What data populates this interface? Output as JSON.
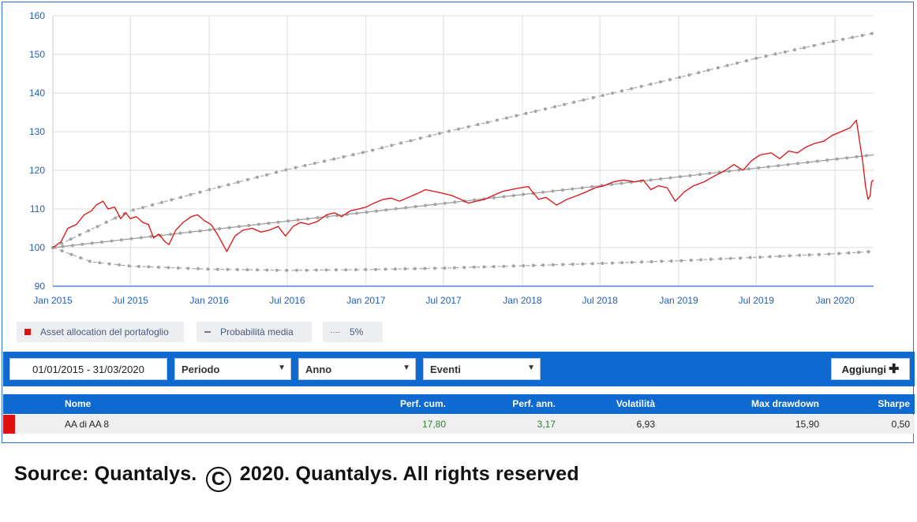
{
  "chart_data": {
    "type": "line",
    "ylim": [
      90,
      160
    ],
    "y_ticks": [
      90,
      100,
      110,
      120,
      130,
      140,
      150,
      160
    ],
    "x_start": "2015-01-01",
    "x_end": "2020-03-31",
    "x_ticks": [
      {
        "label": "Jan 2015",
        "date": "2015-01-01"
      },
      {
        "label": "Jul 2015",
        "date": "2015-07-01"
      },
      {
        "label": "Jan 2016",
        "date": "2016-01-01"
      },
      {
        "label": "Jul 2016",
        "date": "2016-07-01"
      },
      {
        "label": "Jan 2017",
        "date": "2017-01-01"
      },
      {
        "label": "Jul 2017",
        "date": "2017-07-01"
      },
      {
        "label": "Jan 2018",
        "date": "2018-01-01"
      },
      {
        "label": "Jul 2018",
        "date": "2018-07-01"
      },
      {
        "label": "Jan 2019",
        "date": "2019-01-01"
      },
      {
        "label": "Jul 2019",
        "date": "2019-07-01"
      },
      {
        "label": "Jan 2020",
        "date": "2020-01-01"
      }
    ],
    "grid": true,
    "legend_placement": "bottom",
    "series": [
      {
        "name": "Asset allocation del portafoglio",
        "color": "#e01010",
        "style": "solid",
        "points": [
          [
            "2015-01-01",
            100
          ],
          [
            "2015-01-20",
            101.5
          ],
          [
            "2015-02-05",
            105
          ],
          [
            "2015-02-25",
            106
          ],
          [
            "2015-03-15",
            108.5
          ],
          [
            "2015-04-01",
            109.5
          ],
          [
            "2015-04-12",
            111
          ],
          [
            "2015-04-28",
            112
          ],
          [
            "2015-05-10",
            110
          ],
          [
            "2015-05-25",
            110.5
          ],
          [
            "2015-06-08",
            107.5
          ],
          [
            "2015-06-20",
            109
          ],
          [
            "2015-07-01",
            107.5
          ],
          [
            "2015-07-15",
            108
          ],
          [
            "2015-07-30",
            106.5
          ],
          [
            "2015-08-12",
            106
          ],
          [
            "2015-08-24",
            102.5
          ],
          [
            "2015-09-05",
            103.5
          ],
          [
            "2015-09-20",
            101.5
          ],
          [
            "2015-09-29",
            100.8
          ],
          [
            "2015-10-15",
            104.5
          ],
          [
            "2015-11-01",
            106.5
          ],
          [
            "2015-11-20",
            108
          ],
          [
            "2015-12-05",
            108.5
          ],
          [
            "2015-12-20",
            107
          ],
          [
            "2016-01-05",
            106
          ],
          [
            "2016-01-20",
            103.5
          ],
          [
            "2016-02-11",
            99
          ],
          [
            "2016-03-01",
            103
          ],
          [
            "2016-03-20",
            104.5
          ],
          [
            "2016-04-10",
            105
          ],
          [
            "2016-05-01",
            104
          ],
          [
            "2016-05-20",
            104.5
          ],
          [
            "2016-06-10",
            105.5
          ],
          [
            "2016-06-27",
            103
          ],
          [
            "2016-07-15",
            105.5
          ],
          [
            "2016-08-01",
            106.5
          ],
          [
            "2016-08-20",
            106
          ],
          [
            "2016-09-10",
            106.8
          ],
          [
            "2016-10-01",
            108.5
          ],
          [
            "2016-10-20",
            109
          ],
          [
            "2016-11-05",
            108
          ],
          [
            "2016-11-25",
            109.5
          ],
          [
            "2016-12-15",
            110
          ],
          [
            "2017-01-01",
            110.5
          ],
          [
            "2017-01-20",
            111.5
          ],
          [
            "2017-02-10",
            112.5
          ],
          [
            "2017-03-01",
            112.8
          ],
          [
            "2017-03-20",
            112
          ],
          [
            "2017-04-10",
            113
          ],
          [
            "2017-05-01",
            114
          ],
          [
            "2017-05-20",
            115
          ],
          [
            "2017-06-10",
            114.5
          ],
          [
            "2017-07-01",
            114
          ],
          [
            "2017-07-20",
            113.5
          ],
          [
            "2017-08-10",
            112.5
          ],
          [
            "2017-08-28",
            111.5
          ],
          [
            "2017-09-15",
            112
          ],
          [
            "2017-10-05",
            112.5
          ],
          [
            "2017-10-25",
            113.5
          ],
          [
            "2017-11-15",
            114.5
          ],
          [
            "2017-12-05",
            115
          ],
          [
            "2017-12-28",
            115.5
          ],
          [
            "2018-01-15",
            115.8
          ],
          [
            "2018-02-08",
            112.5
          ],
          [
            "2018-02-25",
            113
          ],
          [
            "2018-03-22",
            111
          ],
          [
            "2018-04-15",
            112.5
          ],
          [
            "2018-05-10",
            113.5
          ],
          [
            "2018-06-01",
            114.5
          ],
          [
            "2018-06-20",
            115.5
          ],
          [
            "2018-07-10",
            116
          ],
          [
            "2018-08-01",
            117
          ],
          [
            "2018-08-25",
            117.5
          ],
          [
            "2018-09-20",
            117
          ],
          [
            "2018-10-10",
            117.5
          ],
          [
            "2018-10-28",
            115
          ],
          [
            "2018-11-15",
            116
          ],
          [
            "2018-12-05",
            115.5
          ],
          [
            "2018-12-24",
            112
          ],
          [
            "2019-01-15",
            114.5
          ],
          [
            "2019-02-05",
            116
          ],
          [
            "2019-03-01",
            117
          ],
          [
            "2019-03-25",
            118.5
          ],
          [
            "2019-04-20",
            120
          ],
          [
            "2019-05-10",
            121.5
          ],
          [
            "2019-05-31",
            120
          ],
          [
            "2019-06-20",
            122.5
          ],
          [
            "2019-07-10",
            124
          ],
          [
            "2019-08-05",
            124.5
          ],
          [
            "2019-08-25",
            123
          ],
          [
            "2019-09-15",
            125
          ],
          [
            "2019-10-05",
            124.5
          ],
          [
            "2019-10-25",
            126
          ],
          [
            "2019-11-15",
            127
          ],
          [
            "2019-12-05",
            127.5
          ],
          [
            "2019-12-25",
            129
          ],
          [
            "2020-01-15",
            130
          ],
          [
            "2020-02-05",
            131
          ],
          [
            "2020-02-20",
            133
          ],
          [
            "2020-02-28",
            127
          ],
          [
            "2020-03-06",
            122
          ],
          [
            "2020-03-12",
            116
          ],
          [
            "2020-03-18",
            112.5
          ],
          [
            "2020-03-23",
            113.5
          ],
          [
            "2020-03-26",
            117
          ],
          [
            "2020-03-31",
            117.5
          ]
        ]
      },
      {
        "name": "Probabilità media",
        "color": "#999999",
        "style": "solid-with-dots",
        "points": [
          [
            "2015-01-01",
            100
          ],
          [
            "2020-03-31",
            124
          ]
        ]
      },
      {
        "name": "5%",
        "color": "#a9a9a9",
        "style": "dashed-with-dots",
        "role": "upper",
        "points": [
          [
            "2015-01-01",
            100
          ],
          [
            "2015-07-01",
            109.5
          ],
          [
            "2016-01-01",
            115
          ],
          [
            "2016-07-01",
            120.2
          ],
          [
            "2017-01-01",
            124.8
          ],
          [
            "2017-07-01",
            129.8
          ],
          [
            "2018-01-01",
            134.5
          ],
          [
            "2018-07-01",
            139.2
          ],
          [
            "2019-01-01",
            144
          ],
          [
            "2019-07-01",
            149
          ],
          [
            "2020-01-01",
            153.5
          ],
          [
            "2020-03-31",
            155.5
          ]
        ]
      },
      {
        "name": "5%",
        "color": "#a9a9a9",
        "style": "dashed-with-dots",
        "role": "lower",
        "points": [
          [
            "2015-01-01",
            100
          ],
          [
            "2015-04-01",
            96.3
          ],
          [
            "2015-07-01",
            95.2
          ],
          [
            "2016-01-01",
            94.4
          ],
          [
            "2016-07-01",
            94.1
          ],
          [
            "2017-01-01",
            94.3
          ],
          [
            "2017-07-01",
            94.7
          ],
          [
            "2018-01-01",
            95.3
          ],
          [
            "2018-07-01",
            95.9
          ],
          [
            "2019-01-01",
            96.6
          ],
          [
            "2019-07-01",
            97.5
          ],
          [
            "2020-01-01",
            98.4
          ],
          [
            "2020-03-31",
            99
          ]
        ]
      }
    ]
  },
  "legend": [
    {
      "label": "Asset allocation del portafoglio",
      "color": "#e01010"
    },
    {
      "label": "Probabilità media",
      "color": "#777777"
    },
    {
      "label": "5%",
      "color": "#999999"
    }
  ],
  "toolbar": {
    "date_range": "01/01/2015 - 31/03/2020",
    "periodo": "Periodo",
    "anno": "Anno",
    "eventi": "Eventi",
    "add_label": "Aggiungi",
    "caret": "▼",
    "plus": "✚"
  },
  "table": {
    "headers": {
      "name": "Nome",
      "perf_cum": "Perf. cum.",
      "perf_ann": "Perf. ann.",
      "vol": "Volatilità",
      "maxdd": "Max drawdown",
      "sharpe": "Sharpe"
    },
    "row": {
      "color": "#e01010",
      "name": "AA di AA 8",
      "perf_cum": "17,80",
      "perf_ann": "3,17",
      "vol": "6,93",
      "maxdd": "15,90",
      "sharpe": "0,50"
    }
  },
  "source": {
    "before": "Source: Quantalys.",
    "symbol": "C",
    "after": "2020. Quantalys. All rights reserved"
  }
}
